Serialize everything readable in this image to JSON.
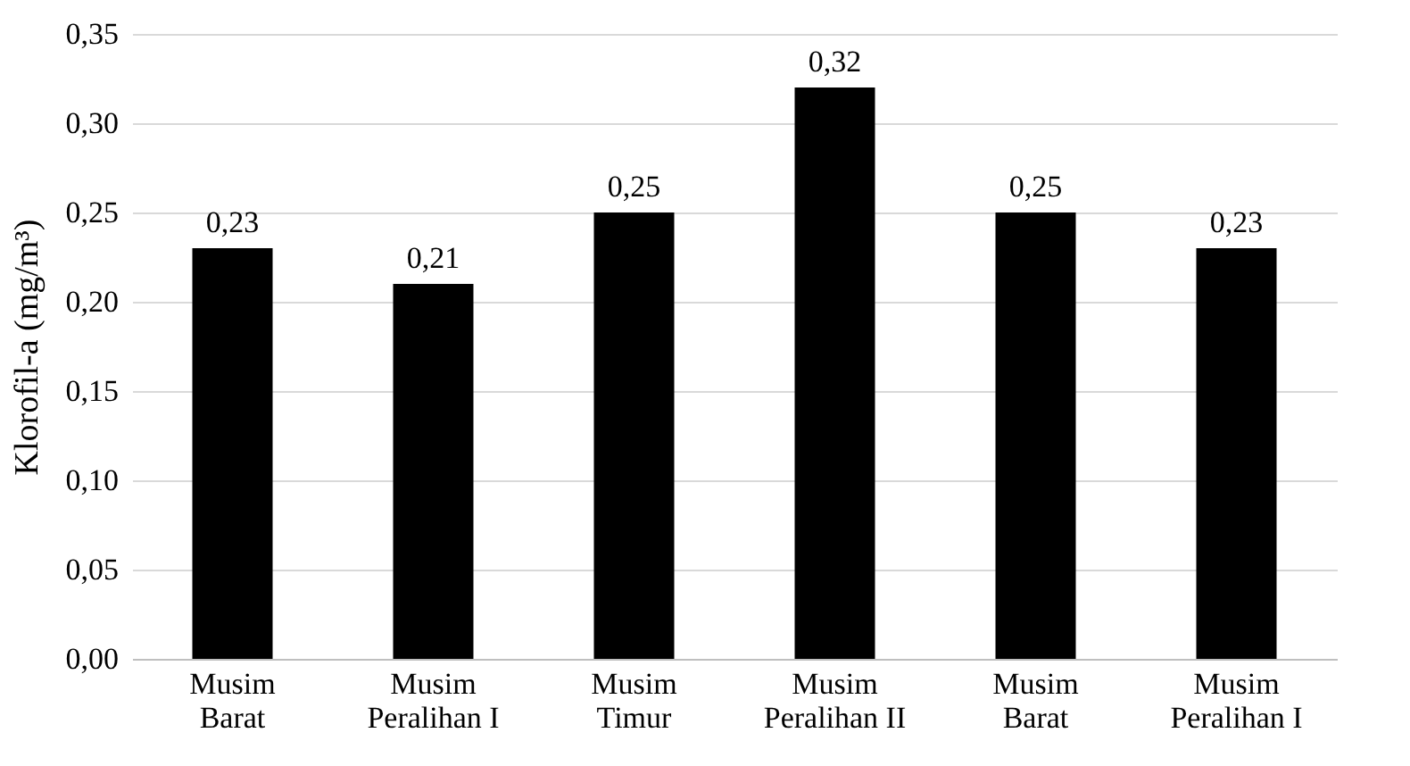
{
  "chart_data": {
    "type": "bar",
    "ylabel": "Klorofil-a (mg/m³)",
    "categories": [
      "Musim Barat",
      "Musim Peralihan I",
      "Musim Timur",
      "Musim Peralihan II",
      "Musim Barat",
      "Musim Peralihan I"
    ],
    "values": [
      0.23,
      0.21,
      0.25,
      0.32,
      0.25,
      0.23
    ],
    "value_labels": [
      "0,23",
      "0,21",
      "0,25",
      "0,32",
      "0,25",
      "0,23"
    ],
    "color": "#000000",
    "ylim": [
      0,
      0.35
    ],
    "yticks": [
      {
        "value": 0,
        "label": "0,00"
      },
      {
        "value": 0.05,
        "label": "0,05"
      },
      {
        "value": 0.1,
        "label": "0,10"
      },
      {
        "value": 0.15,
        "label": "0,15"
      },
      {
        "value": 0.2,
        "label": "0,20"
      },
      {
        "value": 0.25,
        "label": "0,25"
      },
      {
        "value": 0.3,
        "label": "0,30"
      },
      {
        "value": 0.35,
        "label": "0,35"
      }
    ],
    "grid": "y"
  }
}
